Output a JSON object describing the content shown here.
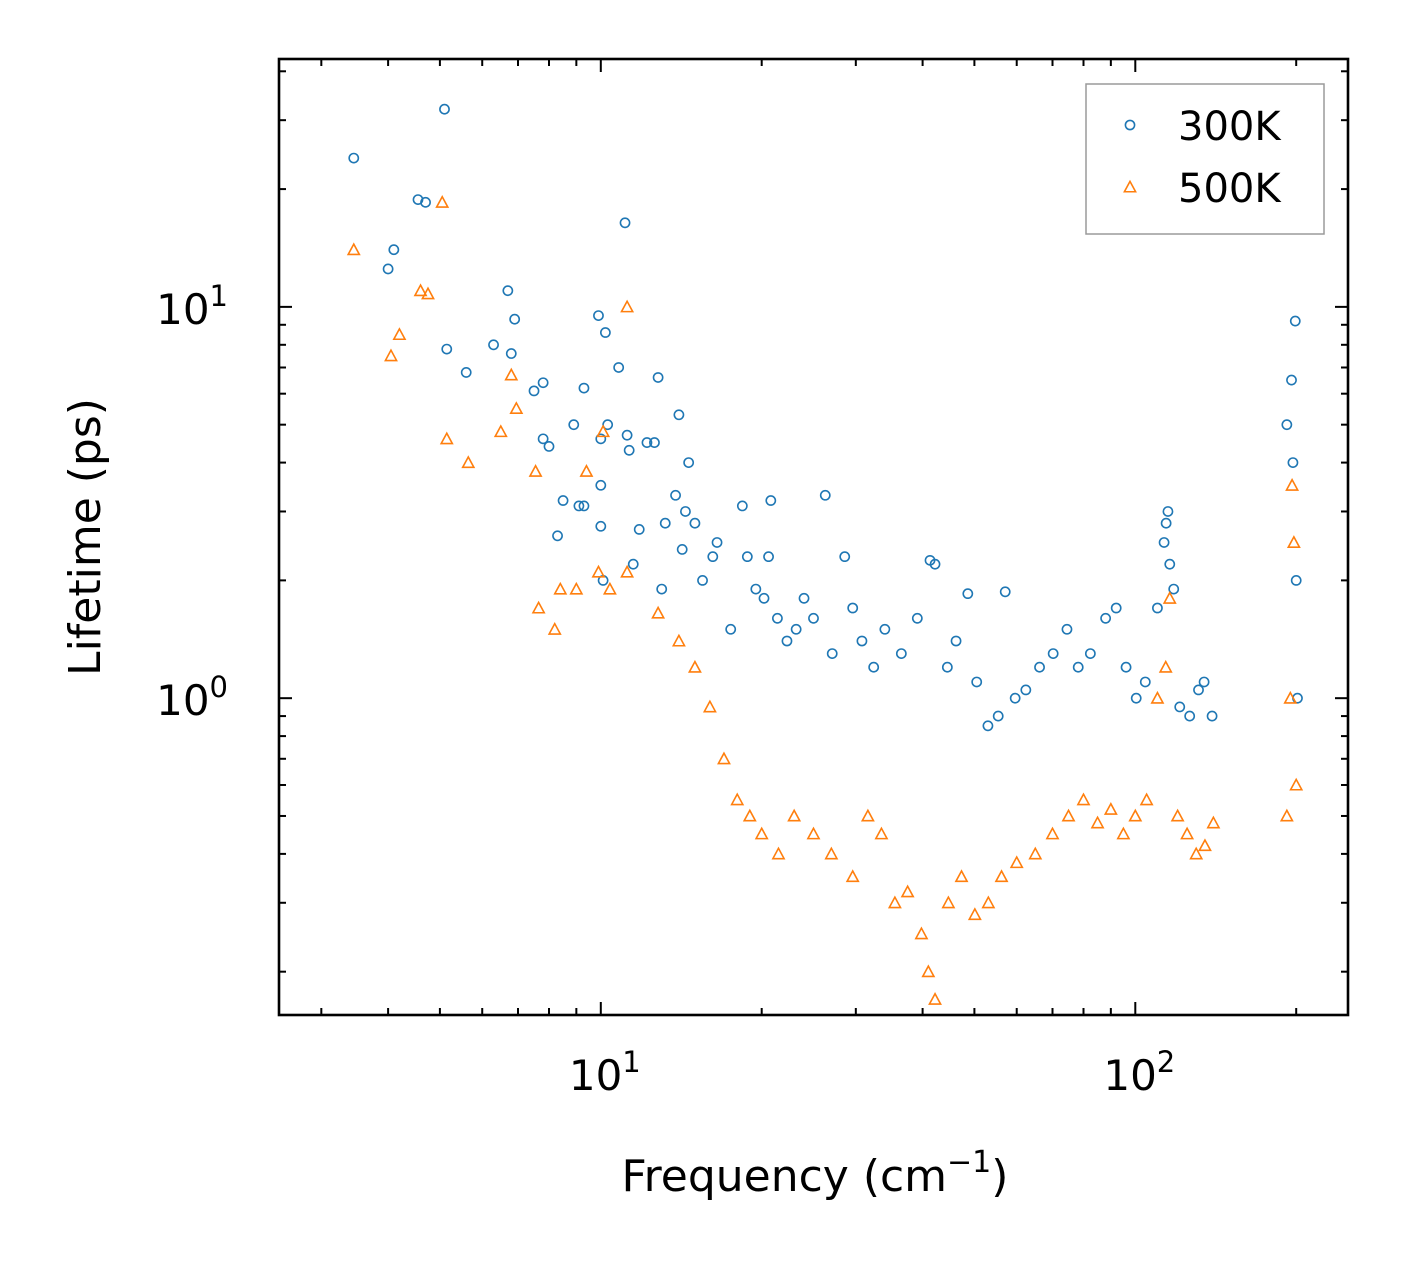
{
  "chart_data": {
    "type": "scatter",
    "title": "",
    "xlabel": "Frequency (cm",
    "xlabel_superscript": "−1",
    "xlabel_suffix": ")",
    "ylabel": "Lifetime (ps)",
    "xscale": "log",
    "yscale": "log",
    "xlim": [
      2.5,
      250
    ],
    "ylim": [
      0.155,
      43
    ],
    "x_tick_labels": [
      {
        "value": 10,
        "base": "10",
        "exp": "1"
      },
      {
        "value": 100,
        "base": "10",
        "exp": "2"
      }
    ],
    "y_tick_labels": [
      {
        "value": 1,
        "base": "10",
        "exp": "0"
      },
      {
        "value": 10,
        "base": "10",
        "exp": "1"
      }
    ],
    "legend_position": "top-right",
    "series": [
      {
        "name": "300K",
        "marker": "circle",
        "color": "#1f77b4",
        "points": [
          [
            3.45,
            24.0
          ],
          [
            4.0,
            12.5
          ],
          [
            4.1,
            14.0
          ],
          [
            4.55,
            18.8
          ],
          [
            4.7,
            18.5
          ],
          [
            5.1,
            32.0
          ],
          [
            5.15,
            7.8
          ],
          [
            5.6,
            6.8
          ],
          [
            6.3,
            8.0
          ],
          [
            6.7,
            11.0
          ],
          [
            6.8,
            7.6
          ],
          [
            6.9,
            9.3
          ],
          [
            7.5,
            6.1
          ],
          [
            7.8,
            6.4
          ],
          [
            7.8,
            4.6
          ],
          [
            8.0,
            4.4
          ],
          [
            8.3,
            2.6
          ],
          [
            8.5,
            3.2
          ],
          [
            8.9,
            5.0
          ],
          [
            9.1,
            3.1
          ],
          [
            9.3,
            6.2
          ],
          [
            9.3,
            3.1
          ],
          [
            9.9,
            9.5
          ],
          [
            10.0,
            3.5
          ],
          [
            10.0,
            2.75
          ],
          [
            10.0,
            4.6
          ],
          [
            10.1,
            2.0
          ],
          [
            10.2,
            8.6
          ],
          [
            10.3,
            5.0
          ],
          [
            10.8,
            7.0
          ],
          [
            11.1,
            16.4
          ],
          [
            11.2,
            4.7
          ],
          [
            11.3,
            4.3
          ],
          [
            11.5,
            2.2
          ],
          [
            11.8,
            2.7
          ],
          [
            12.2,
            4.5
          ],
          [
            12.6,
            4.5
          ],
          [
            12.8,
            6.6
          ],
          [
            13.0,
            1.9
          ],
          [
            13.2,
            2.8
          ],
          [
            13.8,
            3.3
          ],
          [
            14.0,
            5.3
          ],
          [
            14.2,
            2.4
          ],
          [
            14.4,
            3.0
          ],
          [
            14.6,
            4.0
          ],
          [
            15.0,
            2.8
          ],
          [
            15.5,
            2.0
          ],
          [
            16.2,
            2.3
          ],
          [
            16.5,
            2.5
          ],
          [
            17.5,
            1.5
          ],
          [
            18.4,
            3.1
          ],
          [
            18.8,
            2.3
          ],
          [
            19.5,
            1.9
          ],
          [
            20.2,
            1.8
          ],
          [
            20.8,
            3.2
          ],
          [
            20.6,
            2.3
          ],
          [
            21.4,
            1.6
          ],
          [
            22.3,
            1.4
          ],
          [
            23.2,
            1.5
          ],
          [
            24.0,
            1.8
          ],
          [
            25.0,
            1.6
          ],
          [
            26.3,
            3.3
          ],
          [
            27.1,
            1.3
          ],
          [
            28.6,
            2.3
          ],
          [
            29.6,
            1.7
          ],
          [
            30.8,
            1.4
          ],
          [
            32.4,
            1.2
          ],
          [
            34.0,
            1.5
          ],
          [
            36.5,
            1.3
          ],
          [
            39.1,
            1.6
          ],
          [
            41.3,
            2.25
          ],
          [
            42.2,
            2.2
          ],
          [
            44.5,
            1.2
          ],
          [
            46.2,
            1.4
          ],
          [
            48.6,
            1.85
          ],
          [
            50.5,
            1.1
          ],
          [
            53.0,
            0.85
          ],
          [
            55.4,
            0.9
          ],
          [
            57.1,
            1.87
          ],
          [
            59.6,
            1.0
          ],
          [
            62.4,
            1.05
          ],
          [
            66.2,
            1.2
          ],
          [
            70.2,
            1.3
          ],
          [
            74.5,
            1.5
          ],
          [
            78.2,
            1.2
          ],
          [
            82.4,
            1.3
          ],
          [
            88.0,
            1.6
          ],
          [
            92.1,
            1.7
          ],
          [
            96.1,
            1.2
          ],
          [
            100.4,
            1.0
          ],
          [
            104.4,
            1.1
          ],
          [
            110.0,
            1.7
          ],
          [
            113.2,
            2.5
          ],
          [
            114.2,
            2.8
          ],
          [
            115.1,
            3.0
          ],
          [
            116.0,
            2.2
          ],
          [
            118.0,
            1.9
          ],
          [
            121.1,
            0.95
          ],
          [
            126.4,
            0.9
          ],
          [
            131.3,
            1.05
          ],
          [
            134.5,
            1.1
          ],
          [
            139.2,
            0.9
          ],
          [
            192.1,
            5.0
          ],
          [
            196.0,
            6.5
          ],
          [
            197.2,
            4.0
          ],
          [
            199.2,
            9.2
          ],
          [
            200.0,
            2.0
          ],
          [
            201.1,
            1.0
          ]
        ]
      },
      {
        "name": "500K",
        "marker": "triangle",
        "color": "#ff7f0e",
        "points": [
          [
            3.45,
            14.0
          ],
          [
            4.05,
            7.5
          ],
          [
            4.2,
            8.5
          ],
          [
            4.6,
            11.0
          ],
          [
            4.75,
            10.8
          ],
          [
            5.05,
            18.5
          ],
          [
            5.15,
            4.6
          ],
          [
            5.65,
            4.0
          ],
          [
            6.5,
            4.8
          ],
          [
            6.8,
            6.7
          ],
          [
            6.95,
            5.5
          ],
          [
            7.55,
            3.8
          ],
          [
            7.65,
            1.7
          ],
          [
            8.2,
            1.5
          ],
          [
            8.4,
            1.9
          ],
          [
            9.0,
            1.9
          ],
          [
            9.4,
            3.8
          ],
          [
            9.9,
            2.1
          ],
          [
            10.1,
            4.8
          ],
          [
            10.4,
            1.9
          ],
          [
            11.2,
            2.1
          ],
          [
            11.2,
            10.0
          ],
          [
            12.8,
            1.65
          ],
          [
            14.0,
            1.4
          ],
          [
            15.0,
            1.2
          ],
          [
            16.0,
            0.95
          ],
          [
            17.0,
            0.7
          ],
          [
            18.0,
            0.55
          ],
          [
            19.0,
            0.5
          ],
          [
            20.0,
            0.45
          ],
          [
            21.5,
            0.4
          ],
          [
            23.0,
            0.5
          ],
          [
            25.0,
            0.45
          ],
          [
            27.0,
            0.4
          ],
          [
            29.6,
            0.35
          ],
          [
            31.6,
            0.5
          ],
          [
            33.5,
            0.45
          ],
          [
            35.5,
            0.3
          ],
          [
            37.5,
            0.32
          ],
          [
            39.8,
            0.25
          ],
          [
            41.0,
            0.2
          ],
          [
            42.2,
            0.17
          ],
          [
            44.7,
            0.3
          ],
          [
            47.3,
            0.35
          ],
          [
            50.1,
            0.28
          ],
          [
            53.1,
            0.3
          ],
          [
            56.2,
            0.35
          ],
          [
            60.0,
            0.38
          ],
          [
            65.0,
            0.4
          ],
          [
            70.0,
            0.45
          ],
          [
            75.0,
            0.5
          ],
          [
            80.0,
            0.55
          ],
          [
            85.0,
            0.48
          ],
          [
            90.0,
            0.52
          ],
          [
            95.0,
            0.45
          ],
          [
            100.0,
            0.5
          ],
          [
            105.0,
            0.55
          ],
          [
            110.0,
            1.0
          ],
          [
            114.0,
            1.2
          ],
          [
            116.0,
            1.8
          ],
          [
            120.0,
            0.5
          ],
          [
            125.0,
            0.45
          ],
          [
            130.0,
            0.4
          ],
          [
            135.0,
            0.42
          ],
          [
            140.0,
            0.48
          ],
          [
            192.1,
            0.5
          ],
          [
            195.0,
            1.0
          ],
          [
            196.5,
            3.5
          ],
          [
            198.0,
            2.5
          ],
          [
            200.0,
            0.6
          ]
        ]
      }
    ]
  }
}
